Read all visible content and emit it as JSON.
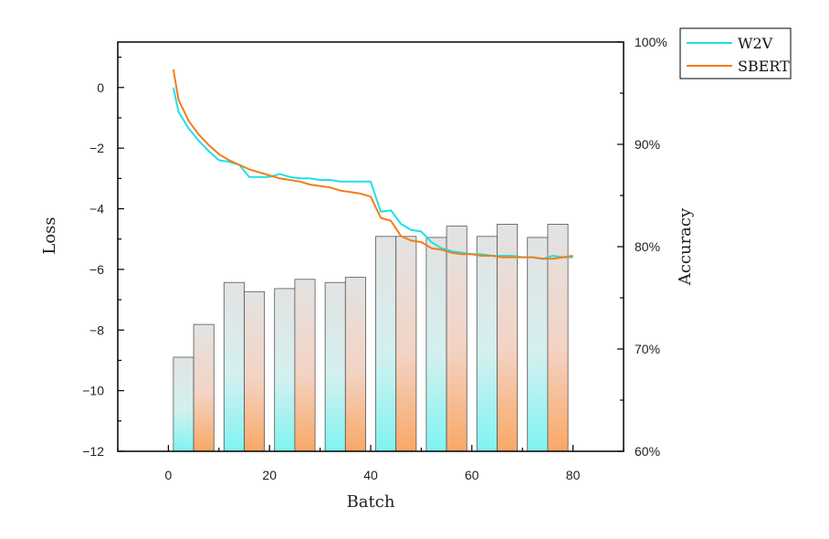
{
  "chart_data": {
    "type": "bar+line",
    "xlabel": "Batch",
    "ylabel_left": "Loss",
    "ylabel_right": "Accuracy",
    "xlim": [
      -10,
      90
    ],
    "x_ticks": [
      0,
      20,
      40,
      60,
      80
    ],
    "ylim_left": [
      -12,
      1.5
    ],
    "y_ticks_left": [
      0,
      -2,
      -4,
      -6,
      -8,
      -10,
      -12
    ],
    "ylim_right": [
      60,
      100
    ],
    "y_ticks_right": [
      "60%",
      "70%",
      "80%",
      "90%",
      "100%"
    ],
    "y_ticks_right_values": [
      60,
      70,
      80,
      90,
      100
    ],
    "legend_position": "outside top-right",
    "colors": {
      "w2v": "#1fe0e6",
      "sbert": "#f07d1a",
      "bar_top": "#e3e3e3",
      "bar_bottom_w2v": "#86f5f3",
      "bar_bottom_sbert": "#f9ad6c"
    },
    "series": [
      {
        "name": "W2V",
        "color": "#1fe0e6",
        "x": [
          1,
          2,
          4,
          6,
          8,
          10,
          12,
          14,
          16,
          18,
          20,
          22,
          24,
          26,
          28,
          30,
          32,
          34,
          36,
          38,
          40,
          42,
          44,
          46,
          48,
          50,
          52,
          54,
          56,
          58,
          60,
          62,
          64,
          66,
          68,
          70,
          72,
          74,
          76,
          78,
          80
        ],
        "values": [
          0.0,
          -0.8,
          -1.35,
          -1.75,
          -2.1,
          -2.4,
          -2.45,
          -2.55,
          -2.95,
          -2.95,
          -2.95,
          -2.85,
          -2.95,
          -3.0,
          -3.0,
          -3.05,
          -3.05,
          -3.1,
          -3.1,
          -3.1,
          -3.1,
          -4.1,
          -4.05,
          -4.5,
          -4.7,
          -4.75,
          -5.1,
          -5.3,
          -5.4,
          -5.45,
          -5.5,
          -5.5,
          -5.55,
          -5.55,
          -5.55,
          -5.6,
          -5.6,
          -5.65,
          -5.55,
          -5.6,
          -5.6
        ]
      },
      {
        "name": "SBERT",
        "color": "#f07d1a",
        "x": [
          1,
          2,
          4,
          6,
          8,
          10,
          12,
          14,
          16,
          18,
          20,
          22,
          24,
          26,
          28,
          30,
          32,
          34,
          36,
          38,
          40,
          42,
          44,
          46,
          48,
          50,
          52,
          54,
          56,
          58,
          60,
          62,
          64,
          66,
          68,
          70,
          72,
          74,
          76,
          78,
          80
        ],
        "values": [
          0.6,
          -0.4,
          -1.1,
          -1.55,
          -1.9,
          -2.2,
          -2.4,
          -2.55,
          -2.7,
          -2.8,
          -2.9,
          -3.0,
          -3.05,
          -3.1,
          -3.2,
          -3.25,
          -3.3,
          -3.4,
          -3.45,
          -3.5,
          -3.6,
          -4.3,
          -4.4,
          -4.9,
          -5.05,
          -5.1,
          -5.3,
          -5.35,
          -5.45,
          -5.5,
          -5.5,
          -5.55,
          -5.55,
          -5.6,
          -5.6,
          -5.6,
          -5.6,
          -5.65,
          -5.65,
          -5.6,
          -5.55
        ]
      }
    ],
    "bars": {
      "axis": "right",
      "x": [
        3,
        7,
        13,
        17,
        23,
        27,
        33,
        37,
        43,
        47,
        53,
        57,
        63,
        67,
        73,
        77
      ],
      "values": [
        69.2,
        72.4,
        76.5,
        75.6,
        75.9,
        76.8,
        76.5,
        77.0,
        81.0,
        81.0,
        80.9,
        82.0,
        81.0,
        82.2,
        80.9,
        82.2
      ]
    }
  }
}
